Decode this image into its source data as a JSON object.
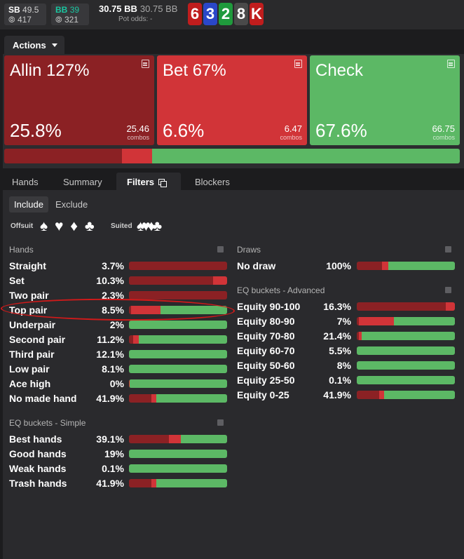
{
  "players": [
    {
      "position": "SB",
      "stack": "49.5",
      "chips": "417"
    },
    {
      "position": "BB",
      "stack": "39",
      "chips": "321"
    }
  ],
  "pot": {
    "main": "30.75 BB",
    "secondary": "30.75 BB",
    "odds_label": "Pot odds:",
    "odds_value": "-"
  },
  "board": [
    {
      "rank": "6",
      "color": "#c01d1d"
    },
    {
      "rank": "3",
      "color": "#2a47c9"
    },
    {
      "rank": "2",
      "color": "#1f9a3c"
    },
    {
      "rank": "8",
      "color": "#4a4a4a"
    },
    {
      "rank": "K",
      "color": "#c01d1d"
    }
  ],
  "actions_label": "Actions",
  "action_tiles": [
    {
      "name": "Allin 127%",
      "pct": "25.8%",
      "combos": "25.46",
      "combos_label": "combos",
      "color": "#8b2124"
    },
    {
      "name": "Bet 67%",
      "pct": "6.6%",
      "combos": "6.47",
      "combos_label": "combos",
      "color": "#d13438"
    },
    {
      "name": "Check",
      "pct": "67.6%",
      "combos": "66.75",
      "combos_label": "combos",
      "color": "#5cb865"
    }
  ],
  "frequency_bar": [
    25.8,
    6.6,
    67.6
  ],
  "colors": {
    "allin": "#8b2124",
    "bet": "#d13438",
    "check": "#5cb865"
  },
  "tabs": [
    "Hands",
    "Summary",
    "Filters",
    "Blockers"
  ],
  "active_tab": "Filters",
  "filter_modes": [
    "Include",
    "Exclude"
  ],
  "suit_groups": {
    "offsuit_label": "Offsuit",
    "offsuit_suits": "♠ ♥ ♦ ♣",
    "suited_label": "Suited",
    "suited_suits": "♠♥♦♣"
  },
  "hands_section": {
    "title": "Hands",
    "rows": [
      {
        "label": "Straight",
        "pct": "3.7%",
        "bar": [
          100,
          0,
          0
        ]
      },
      {
        "label": "Set",
        "pct": "10.3%",
        "bar": [
          86,
          14,
          0
        ]
      },
      {
        "label": "Two pair",
        "pct": "2.3%",
        "bar": [
          100,
          0,
          0
        ]
      },
      {
        "label": "Top pair",
        "pct": "8.5%",
        "bar": [
          2,
          30,
          68
        ]
      },
      {
        "label": "Underpair",
        "pct": "2%",
        "bar": [
          0,
          0,
          100
        ]
      },
      {
        "label": "Second pair",
        "pct": "11.2%",
        "bar": [
          4,
          6,
          90
        ]
      },
      {
        "label": "Third pair",
        "pct": "12.1%",
        "bar": [
          0,
          0,
          100
        ]
      },
      {
        "label": "Low pair",
        "pct": "8.1%",
        "bar": [
          0,
          0,
          100
        ]
      },
      {
        "label": "Ace high",
        "pct": "0%",
        "bar": [
          0,
          1,
          99
        ]
      },
      {
        "label": "No made hand",
        "pct": "41.9%",
        "bar": [
          23,
          5,
          72
        ]
      }
    ]
  },
  "eq_simple": {
    "title": "EQ buckets - Simple",
    "rows": [
      {
        "label": "Best hands",
        "pct": "39.1%",
        "bar": [
          41,
          12,
          47
        ]
      },
      {
        "label": "Good hands",
        "pct": "19%",
        "bar": [
          0,
          0,
          100
        ]
      },
      {
        "label": "Weak hands",
        "pct": "0.1%",
        "bar": [
          0,
          0,
          100
        ]
      },
      {
        "label": "Trash hands",
        "pct": "41.9%",
        "bar": [
          23,
          5,
          72
        ]
      }
    ]
  },
  "draws_section": {
    "title": "Draws",
    "rows": [
      {
        "label": "No draw",
        "pct": "100%",
        "bar": [
          25.8,
          6.6,
          67.6
        ]
      }
    ]
  },
  "eq_advanced": {
    "title": "EQ buckets - Advanced",
    "rows": [
      {
        "label": "Equity 90-100",
        "pct": "16.3%",
        "bar": [
          91,
          9,
          0
        ]
      },
      {
        "label": "Equity 80-90",
        "pct": "7%",
        "bar": [
          2,
          36,
          62
        ]
      },
      {
        "label": "Equity 70-80",
        "pct": "21.4%",
        "bar": [
          2,
          3,
          95
        ]
      },
      {
        "label": "Equity 60-70",
        "pct": "5.5%",
        "bar": [
          0,
          0,
          100
        ]
      },
      {
        "label": "Equity 50-60",
        "pct": "8%",
        "bar": [
          0,
          0,
          100
        ]
      },
      {
        "label": "Equity 25-50",
        "pct": "0.1%",
        "bar": [
          0,
          0,
          100
        ]
      },
      {
        "label": "Equity 0-25",
        "pct": "41.9%",
        "bar": [
          23,
          5,
          72
        ]
      }
    ]
  }
}
